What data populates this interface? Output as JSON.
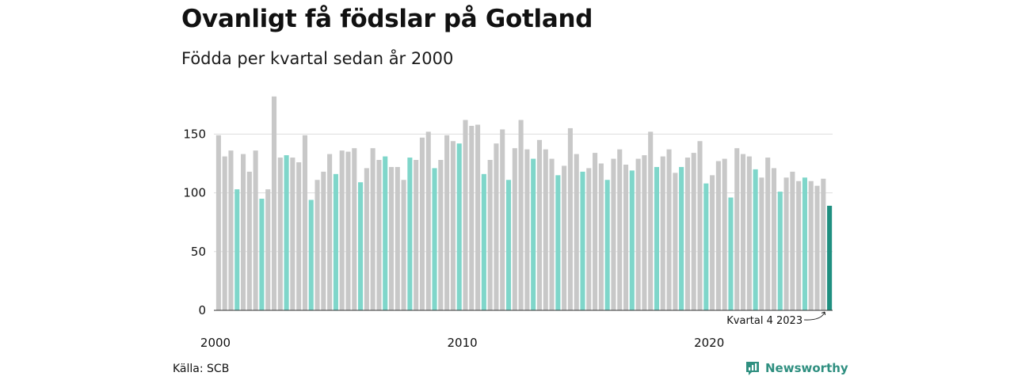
{
  "header": {
    "title": "Ovanligt få födslar på Gotland",
    "subtitle": "Födda per kvartal sedan år 2000"
  },
  "footer": {
    "source": "Källa: SCB",
    "brand": "Newsworthy"
  },
  "colors": {
    "bar_default": "#c8c8c8",
    "bar_q4": "#7fd6ca",
    "bar_latest": "#1f8f80",
    "brand": "#2f8f80"
  },
  "chart_data": {
    "type": "bar",
    "title": "Ovanligt få födslar på Gotland",
    "subtitle": "Födda per kvartal sedan år 2000",
    "xlabel": "",
    "ylabel": "",
    "ylim": [
      0,
      190
    ],
    "y_ticks": [
      0,
      50,
      100,
      150
    ],
    "x_tick_labels": [
      "2000",
      "2010",
      "2020"
    ],
    "grid": true,
    "annotation": "Kvartal 4 2023",
    "start_year": 2000,
    "series": [
      {
        "values": [
          149,
          131,
          136,
          103,
          133,
          118,
          136,
          95,
          103,
          182,
          130,
          132,
          130,
          126,
          149,
          94,
          111,
          118,
          133,
          116,
          136,
          135,
          138,
          109,
          121,
          138,
          128,
          131,
          122,
          122,
          111,
          130,
          128,
          147,
          152,
          121,
          128,
          149,
          144,
          142,
          162,
          157,
          158,
          116,
          128,
          142,
          154,
          111,
          138,
          162,
          137,
          129,
          145,
          137,
          129,
          115,
          123,
          155,
          133,
          118,
          121,
          134,
          125,
          111,
          129,
          137,
          124,
          119,
          129,
          132,
          152,
          122,
          131,
          137,
          117,
          122,
          130,
          134,
          144,
          108,
          115,
          127,
          129,
          96,
          138,
          133,
          131,
          120,
          113,
          130,
          121,
          101,
          113,
          118,
          110,
          113,
          110,
          106,
          112,
          89
        ]
      }
    ]
  }
}
